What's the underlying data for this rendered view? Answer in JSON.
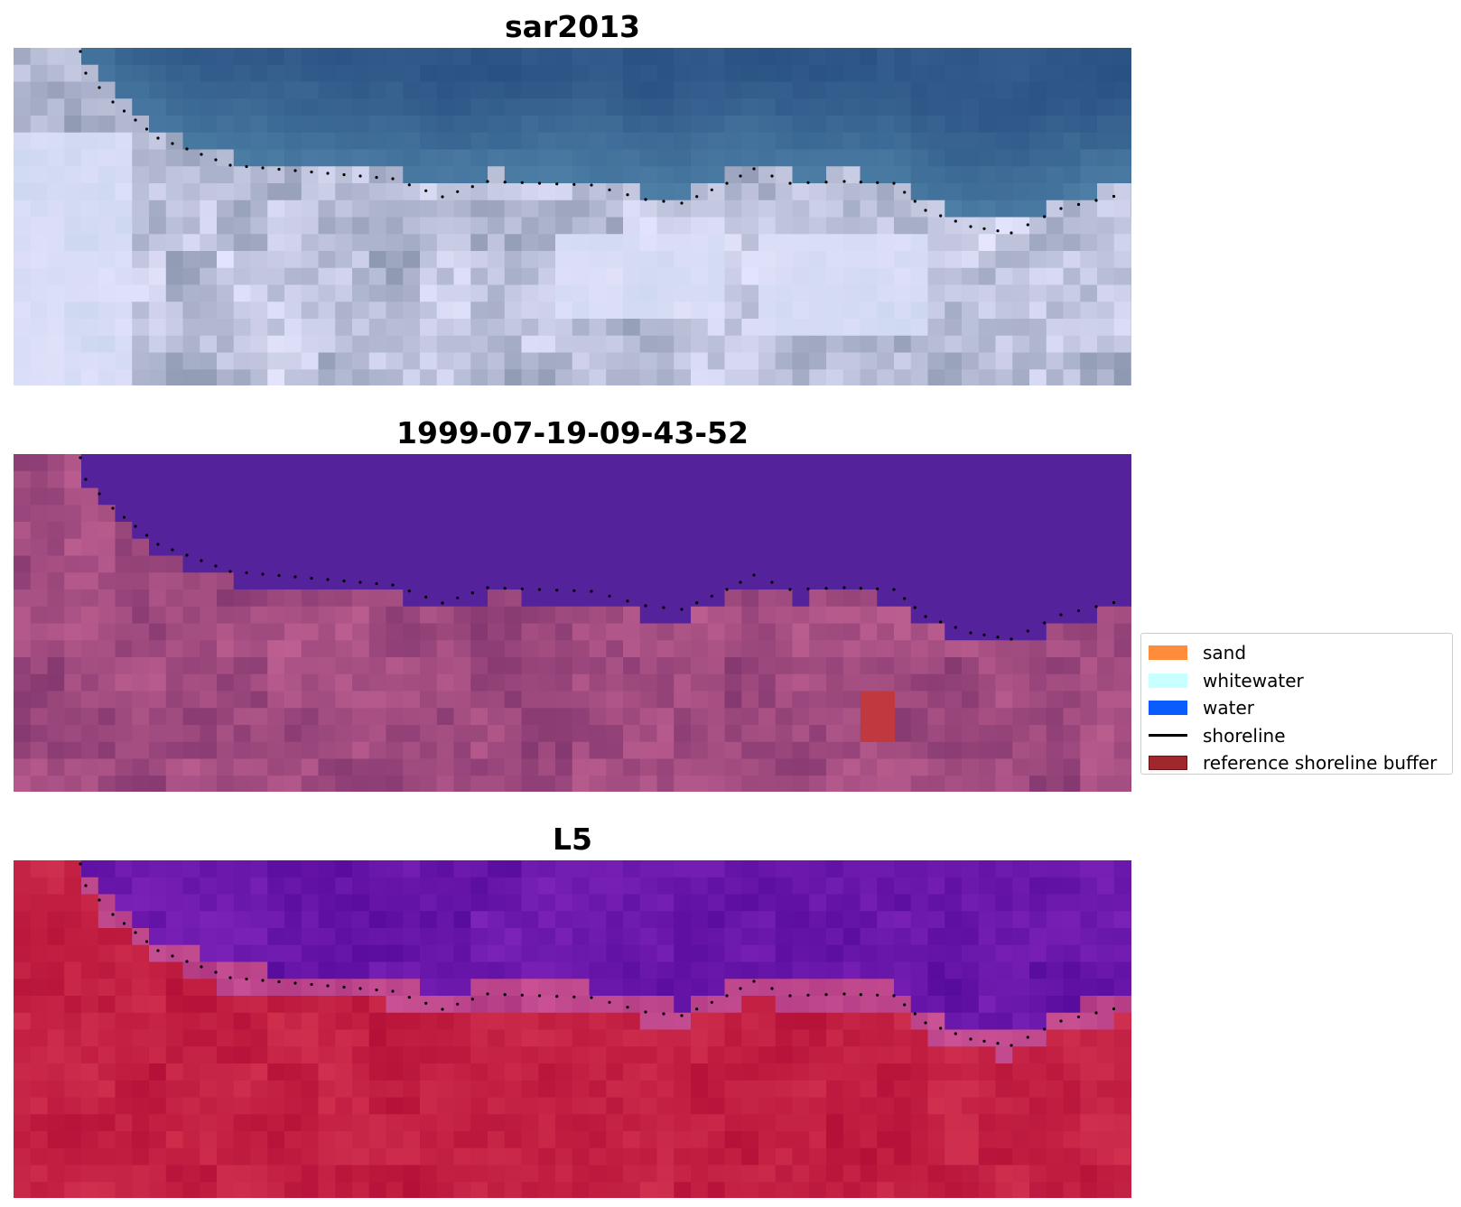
{
  "panels": [
    {
      "title": "sar2013",
      "style": "rgb"
    },
    {
      "title": "1999-07-19-09-43-52",
      "style": "classified"
    },
    {
      "title": "L5",
      "style": "index"
    }
  ],
  "legend": {
    "items": [
      {
        "label": "sand",
        "color": "#ff8c3a",
        "kind": "patch"
      },
      {
        "label": "whitewater",
        "color": "#c8ffff",
        "kind": "patch"
      },
      {
        "label": "water",
        "color": "#0a5cff",
        "kind": "patch"
      },
      {
        "label": "shoreline",
        "color": "#000000",
        "kind": "line"
      },
      {
        "label": "reference shoreline buffer",
        "color": "#a0282d",
        "kind": "patch"
      }
    ]
  },
  "colors": {
    "rgb_water": "#2e5f8f",
    "classified_water": "#54229a",
    "classified_land": "#a0467e",
    "reference_buffer": "#c0393f",
    "index_water": "#5b0a9e",
    "index_land": "#c0103c",
    "shoreline_dots": "#000000"
  }
}
